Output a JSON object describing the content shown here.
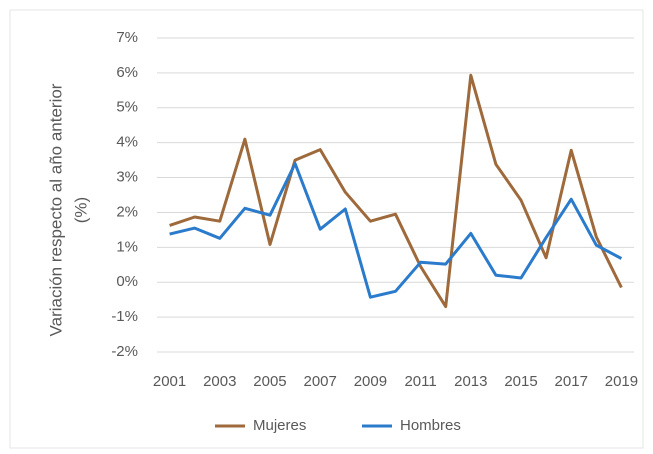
{
  "chart_data": {
    "type": "line",
    "ylabel": [
      "Variación respecto al año anterior",
      "(%)"
    ],
    "x": [
      2001,
      2002,
      2003,
      2004,
      2005,
      2006,
      2007,
      2008,
      2009,
      2010,
      2011,
      2012,
      2013,
      2014,
      2015,
      2016,
      2017,
      2018,
      2019
    ],
    "xlim": [
      2000.5,
      2019.5
    ],
    "xticks": [
      2001,
      2003,
      2005,
      2007,
      2009,
      2011,
      2013,
      2015,
      2017,
      2019
    ],
    "ylim": [
      -2,
      7
    ],
    "yticks": [
      {
        "value": -2,
        "label": "-2%"
      },
      {
        "value": -1,
        "label": "-1%"
      },
      {
        "value": 0,
        "label": "0%"
      },
      {
        "value": 1,
        "label": "1%"
      },
      {
        "value": 2,
        "label": "2%"
      },
      {
        "value": 3,
        "label": "3%"
      },
      {
        "value": 4,
        "label": "4%"
      },
      {
        "value": 5,
        "label": "5%"
      },
      {
        "value": 6,
        "label": "6%"
      },
      {
        "value": 7,
        "label": "7%"
      }
    ],
    "grid": true,
    "legend": "bottom",
    "series": [
      {
        "name": "Mujeres",
        "color": "#9e6a3c",
        "values": [
          1.63,
          1.87,
          1.75,
          4.1,
          1.08,
          3.5,
          3.8,
          2.58,
          1.75,
          1.95,
          0.45,
          -0.7,
          5.93,
          3.38,
          2.35,
          0.7,
          3.78,
          1.3,
          -0.15
        ]
      },
      {
        "name": "Hombres",
        "color": "#2b7bcc",
        "values": [
          1.38,
          1.55,
          1.26,
          2.12,
          1.92,
          3.4,
          1.52,
          2.1,
          -0.43,
          -0.26,
          0.57,
          0.52,
          1.4,
          0.2,
          0.12,
          1.28,
          2.38,
          1.06,
          0.68
        ]
      }
    ]
  }
}
